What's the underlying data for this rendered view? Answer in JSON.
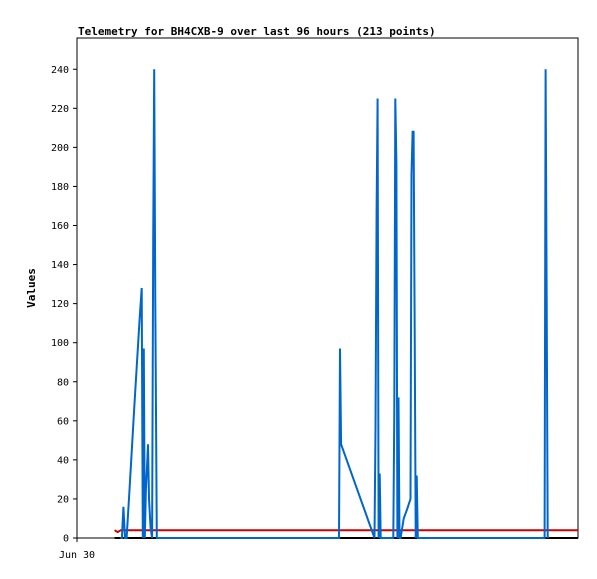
{
  "chart_data": {
    "type": "line",
    "title": "Telemetry for BH4CXB-9 over last 96 hours (213 points)",
    "xlabel": "",
    "ylabel": "Values",
    "x_tick_labels": [
      "Jun 30"
    ],
    "y_ticks": [
      0,
      20,
      40,
      60,
      80,
      100,
      120,
      140,
      160,
      180,
      200,
      220,
      240
    ],
    "ylim": [
      0,
      256
    ],
    "xlim": [
      0,
      96
    ],
    "grid": false,
    "legend": "none",
    "colors": {
      "series_1": "#0066cc",
      "series_2": "#cc0000",
      "series_3": "#000000"
    },
    "series": [
      {
        "color": "#0066cc",
        "x": [
          8.3,
          8.6,
          8.9,
          9.2,
          9.5,
          10.0,
          10.5,
          11.0,
          11.5,
          12.0,
          12.4,
          12.6,
          12.8,
          13.0,
          13.2,
          13.4,
          13.6,
          13.8,
          14.1,
          14.4,
          14.6,
          14.8,
          15.0,
          15.3,
          15.6,
          15.9,
          16.1,
          16.3,
          16.5,
          16.7,
          50.2,
          50.4,
          50.6,
          57.0,
          57.2,
          57.4,
          57.6,
          57.8,
          58.0,
          58.2,
          60.6,
          60.8,
          61.0,
          61.2,
          61.4,
          61.6,
          61.8,
          62.0,
          62.6,
          63.3,
          63.9,
          64.1,
          64.3,
          64.5,
          64.7,
          64.9,
          65.1,
          65.3,
          65.5,
          65.7,
          89.6,
          89.8,
          90.0,
          90.2
        ],
        "y": [
          0,
          0,
          16,
          0,
          0,
          22,
          45,
          68,
          90,
          112,
          128,
          0,
          97,
          0,
          25,
          35,
          48,
          20,
          5,
          0,
          152,
          240,
          120,
          0,
          0,
          0,
          0,
          0,
          0,
          0,
          0,
          97,
          48,
          0,
          56,
          168,
          225,
          0,
          33,
          0,
          0,
          65,
          225,
          192,
          0,
          72,
          0,
          0,
          10,
          15,
          20,
          186,
          208,
          208,
          105,
          0,
          32,
          0,
          0,
          0,
          0,
          240,
          120,
          0
        ]
      },
      {
        "color": "#cc0000",
        "x": [
          7.2,
          7.8,
          8.4,
          96
        ],
        "y": [
          4,
          3,
          4,
          4
        ]
      },
      {
        "color": "#000000",
        "x": [
          7.2,
          96
        ],
        "y": [
          0,
          0
        ]
      }
    ]
  }
}
